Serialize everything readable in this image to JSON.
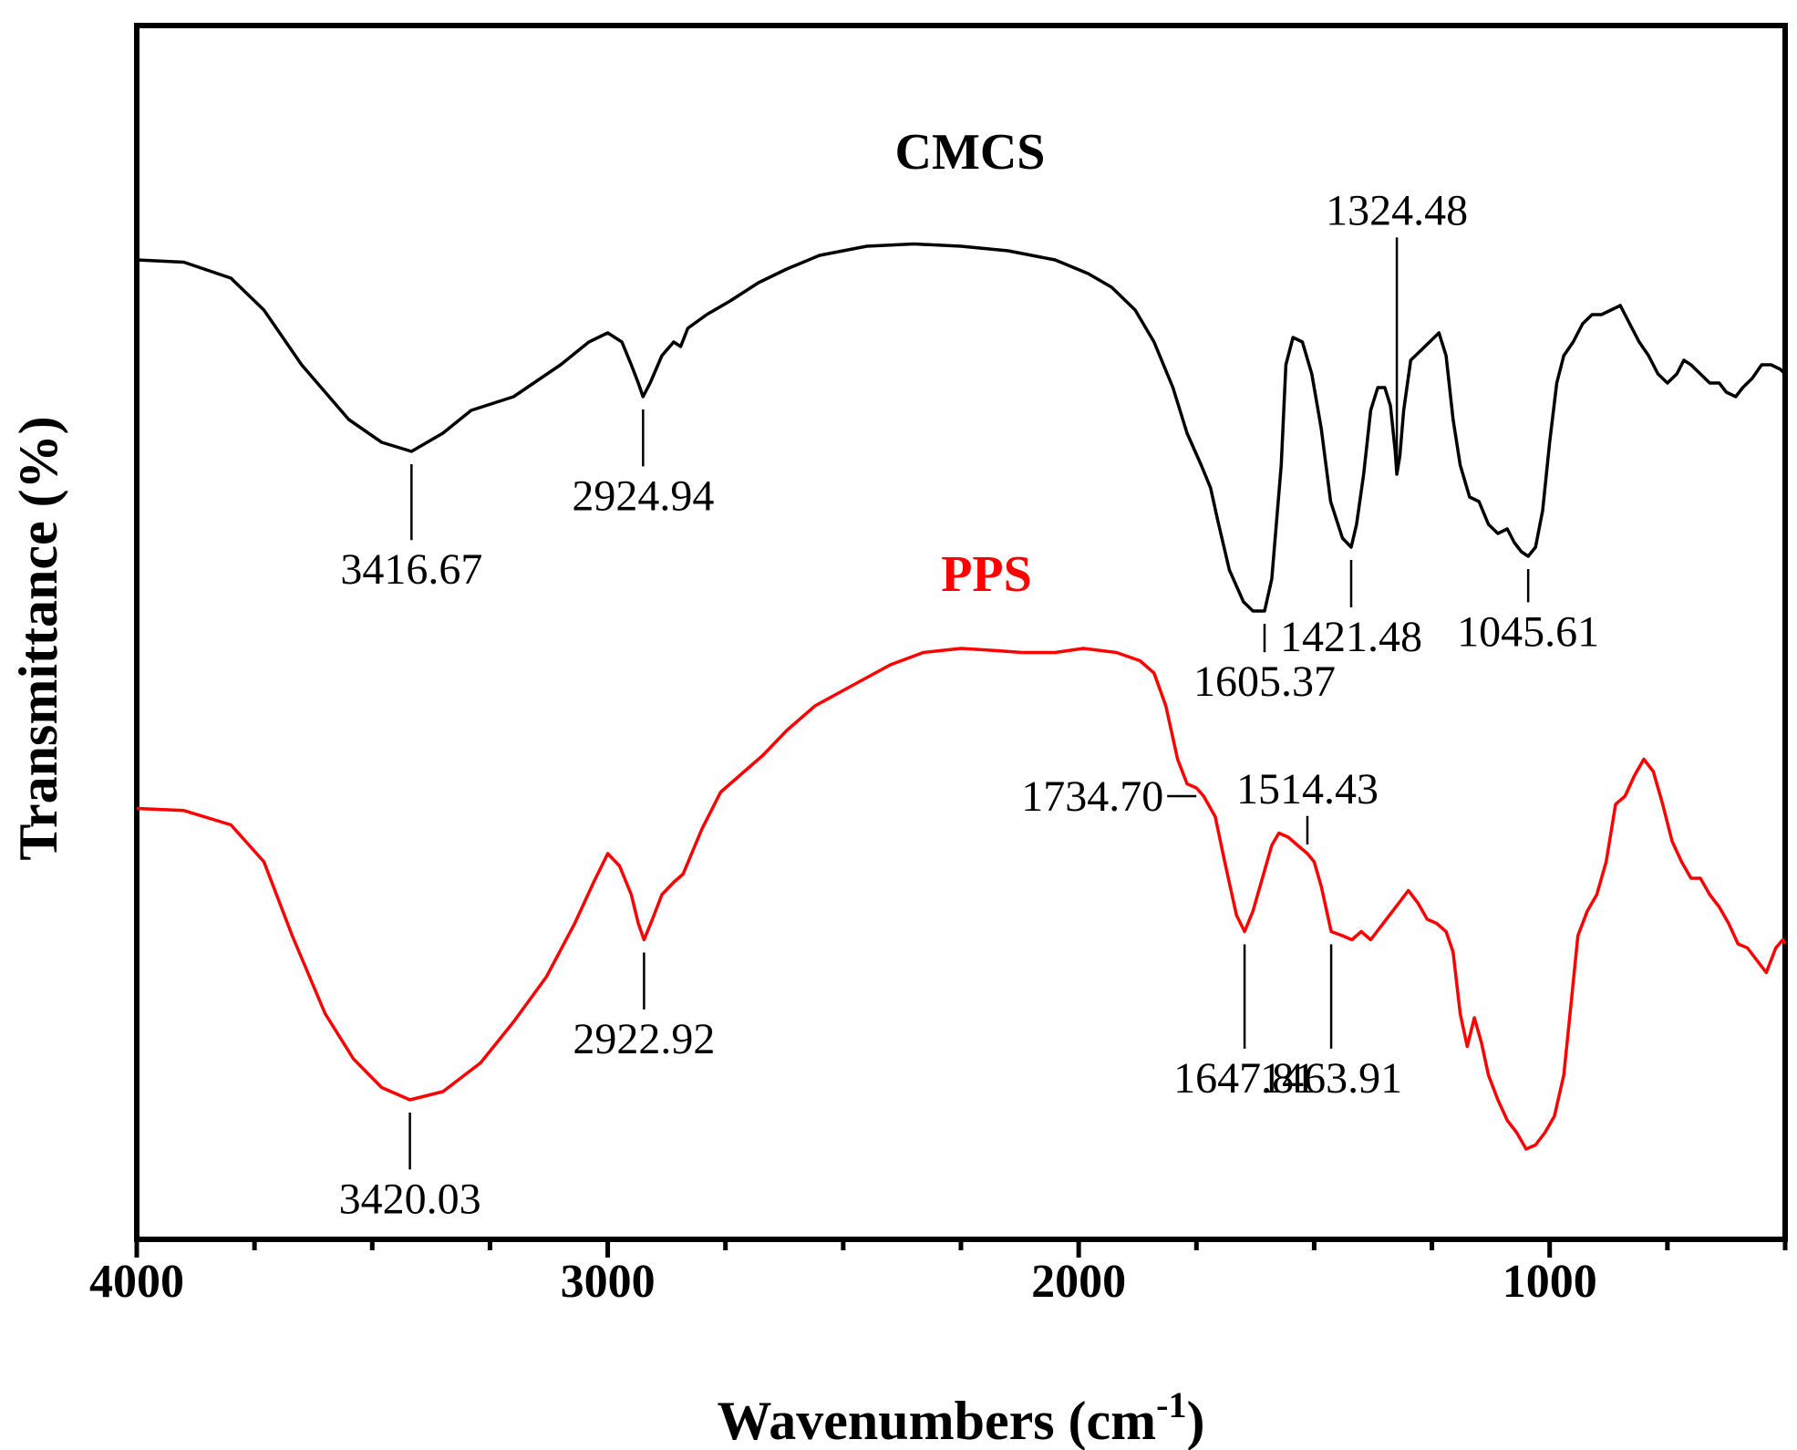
{
  "chart_data": {
    "type": "line",
    "title": "",
    "xlabel": "Wavenumbers (cm",
    "xlabel_sup": "-1",
    "xlabel_close": ")",
    "ylabel": "Transmittance (%)",
    "xlim": [
      4000,
      500
    ],
    "x_ticks": [
      4000,
      3000,
      2000,
      1000
    ],
    "x_tick_labels": [
      "4000",
      "3000",
      "2000",
      "1000"
    ],
    "y_ticks_shown": false,
    "colors": {
      "CMCS": "#000000",
      "PPS": "#ff0000"
    },
    "series": [
      {
        "name": "CMCS",
        "color": "#000000",
        "points": [
          [
            4000,
            85
          ],
          [
            3900,
            84.5
          ],
          [
            3800,
            81
          ],
          [
            3730,
            74
          ],
          [
            3650,
            62
          ],
          [
            3550,
            50
          ],
          [
            3480,
            45
          ],
          [
            3416.67,
            43
          ],
          [
            3350,
            47
          ],
          [
            3290,
            52
          ],
          [
            3200,
            55
          ],
          [
            3100,
            62
          ],
          [
            3040,
            67
          ],
          [
            3000,
            69
          ],
          [
            2970,
            67
          ],
          [
            2950,
            62
          ],
          [
            2935,
            58
          ],
          [
            2924.94,
            55
          ],
          [
            2910,
            58
          ],
          [
            2885,
            64
          ],
          [
            2860,
            67
          ],
          [
            2845,
            66
          ],
          [
            2830,
            70
          ],
          [
            2790,
            73
          ],
          [
            2740,
            76
          ],
          [
            2680,
            80
          ],
          [
            2620,
            83
          ],
          [
            2550,
            86
          ],
          [
            2450,
            88
          ],
          [
            2350,
            88.5
          ],
          [
            2250,
            88
          ],
          [
            2150,
            87
          ],
          [
            2050,
            85
          ],
          [
            1980,
            82
          ],
          [
            1930,
            79
          ],
          [
            1880,
            74
          ],
          [
            1840,
            67
          ],
          [
            1800,
            57
          ],
          [
            1770,
            47
          ],
          [
            1740,
            40
          ],
          [
            1720,
            35
          ],
          [
            1705,
            28
          ],
          [
            1680,
            17
          ],
          [
            1650,
            10
          ],
          [
            1630,
            8
          ],
          [
            1605.37,
            8
          ],
          [
            1590,
            15
          ],
          [
            1570,
            40
          ],
          [
            1560,
            62
          ],
          [
            1545,
            68
          ],
          [
            1525,
            67
          ],
          [
            1505,
            60
          ],
          [
            1485,
            48
          ],
          [
            1465,
            32
          ],
          [
            1440,
            24
          ],
          [
            1421.48,
            22
          ],
          [
            1410,
            27
          ],
          [
            1395,
            38
          ],
          [
            1380,
            52
          ],
          [
            1365,
            57
          ],
          [
            1350,
            57
          ],
          [
            1338,
            53
          ],
          [
            1328,
            43
          ],
          [
            1324.48,
            38
          ],
          [
            1318,
            42
          ],
          [
            1310,
            52
          ],
          [
            1295,
            63
          ],
          [
            1275,
            65
          ],
          [
            1255,
            67
          ],
          [
            1235,
            69
          ],
          [
            1220,
            64
          ],
          [
            1205,
            50
          ],
          [
            1190,
            40
          ],
          [
            1170,
            33
          ],
          [
            1150,
            32
          ],
          [
            1130,
            27
          ],
          [
            1110,
            25
          ],
          [
            1090,
            26
          ],
          [
            1075,
            23
          ],
          [
            1060,
            21
          ],
          [
            1045.61,
            20
          ],
          [
            1030,
            22
          ],
          [
            1015,
            30
          ],
          [
            1000,
            45
          ],
          [
            985,
            58
          ],
          [
            970,
            64
          ],
          [
            950,
            67
          ],
          [
            930,
            71
          ],
          [
            910,
            73
          ],
          [
            890,
            73
          ],
          [
            870,
            74
          ],
          [
            850,
            75
          ],
          [
            830,
            71
          ],
          [
            810,
            67
          ],
          [
            790,
            64
          ],
          [
            770,
            60
          ],
          [
            750,
            58
          ],
          [
            730,
            60
          ],
          [
            715,
            63
          ],
          [
            700,
            62
          ],
          [
            680,
            60
          ],
          [
            660,
            58
          ],
          [
            640,
            58
          ],
          [
            625,
            56
          ],
          [
            605,
            55
          ],
          [
            590,
            57
          ],
          [
            570,
            59
          ],
          [
            550,
            62
          ],
          [
            530,
            62
          ],
          [
            510,
            61
          ],
          [
            500,
            60
          ]
        ]
      },
      {
        "name": "PPS",
        "color": "#ff0000",
        "points": [
          [
            4000,
            83
          ],
          [
            3900,
            82.5
          ],
          [
            3800,
            79
          ],
          [
            3730,
            70
          ],
          [
            3670,
            52
          ],
          [
            3600,
            33
          ],
          [
            3540,
            22
          ],
          [
            3480,
            15
          ],
          [
            3420.03,
            12
          ],
          [
            3350,
            14
          ],
          [
            3270,
            21
          ],
          [
            3200,
            31
          ],
          [
            3130,
            42
          ],
          [
            3070,
            55
          ],
          [
            3030,
            65
          ],
          [
            3000,
            72
          ],
          [
            2975,
            69
          ],
          [
            2950,
            62
          ],
          [
            2935,
            55
          ],
          [
            2922.92,
            51
          ],
          [
            2905,
            56
          ],
          [
            2885,
            62
          ],
          [
            2860,
            65
          ],
          [
            2840,
            67
          ],
          [
            2800,
            78
          ],
          [
            2760,
            87
          ],
          [
            2720,
            91
          ],
          [
            2670,
            96
          ],
          [
            2620,
            102
          ],
          [
            2560,
            108
          ],
          [
            2480,
            113
          ],
          [
            2400,
            118
          ],
          [
            2330,
            121
          ],
          [
            2250,
            122
          ],
          [
            2180,
            121.5
          ],
          [
            2120,
            121
          ],
          [
            2050,
            121
          ],
          [
            1990,
            122
          ],
          [
            1920,
            121
          ],
          [
            1870,
            119
          ],
          [
            1840,
            116
          ],
          [
            1815,
            108
          ],
          [
            1790,
            95
          ],
          [
            1770,
            89
          ],
          [
            1750,
            88
          ],
          [
            1734.7,
            86
          ],
          [
            1710,
            81
          ],
          [
            1690,
            70
          ],
          [
            1665,
            57
          ],
          [
            1647.81,
            53
          ],
          [
            1630,
            58
          ],
          [
            1610,
            66
          ],
          [
            1590,
            74
          ],
          [
            1575,
            77
          ],
          [
            1555,
            76
          ],
          [
            1535,
            74
          ],
          [
            1514.43,
            72
          ],
          [
            1500,
            70
          ],
          [
            1485,
            64
          ],
          [
            1463.91,
            53
          ],
          [
            1440,
            52
          ],
          [
            1420,
            51
          ],
          [
            1400,
            53
          ],
          [
            1380,
            51
          ],
          [
            1360,
            54
          ],
          [
            1340,
            57
          ],
          [
            1320,
            60
          ],
          [
            1300,
            63
          ],
          [
            1280,
            60
          ],
          [
            1260,
            56
          ],
          [
            1240,
            55
          ],
          [
            1220,
            53
          ],
          [
            1205,
            48
          ],
          [
            1190,
            33
          ],
          [
            1175,
            25
          ],
          [
            1160,
            32
          ],
          [
            1145,
            26
          ],
          [
            1130,
            18
          ],
          [
            1110,
            12
          ],
          [
            1090,
            7
          ],
          [
            1070,
            4
          ],
          [
            1050,
            0
          ],
          [
            1030,
            1
          ],
          [
            1010,
            4
          ],
          [
            990,
            8
          ],
          [
            970,
            18
          ],
          [
            955,
            35
          ],
          [
            940,
            52
          ],
          [
            920,
            58
          ],
          [
            900,
            62
          ],
          [
            880,
            70
          ],
          [
            860,
            84
          ],
          [
            840,
            86
          ],
          [
            820,
            91
          ],
          [
            800,
            95
          ],
          [
            780,
            92
          ],
          [
            760,
            84
          ],
          [
            740,
            75
          ],
          [
            720,
            70
          ],
          [
            700,
            66
          ],
          [
            680,
            66
          ],
          [
            660,
            62
          ],
          [
            640,
            59
          ],
          [
            620,
            55
          ],
          [
            600,
            50
          ],
          [
            580,
            49
          ],
          [
            560,
            46
          ],
          [
            540,
            43
          ],
          [
            520,
            49
          ],
          [
            505,
            51
          ],
          [
            500,
            50
          ]
        ]
      }
    ],
    "annotations": [
      {
        "series": "CMCS",
        "text": "3416.67",
        "x": 3416.67,
        "y": 43,
        "dir": "down",
        "len": 16
      },
      {
        "series": "CMCS",
        "text": "2924.94",
        "x": 2924.94,
        "y": 55,
        "dir": "down",
        "len": 12
      },
      {
        "series": "CMCS",
        "text": "1605.37",
        "x": 1605.37,
        "y": 8,
        "dir": "down",
        "len": 6
      },
      {
        "series": "CMCS",
        "text": "1421.48",
        "x": 1421.48,
        "y": 22,
        "dir": "down",
        "len": 10
      },
      {
        "series": "CMCS",
        "text": "1324.48",
        "x": 1324.48,
        "y": 38,
        "dir": "up",
        "len": 48
      },
      {
        "series": "CMCS",
        "text": "1045.61",
        "x": 1045.61,
        "y": 20,
        "dir": "down",
        "len": 7
      },
      {
        "series": "PPS",
        "text": "3420.03",
        "x": 3420.03,
        "y": 12,
        "dir": "down",
        "len": 12
      },
      {
        "series": "PPS",
        "text": "2922.92",
        "x": 2922.92,
        "y": 51,
        "dir": "down",
        "len": 12
      },
      {
        "series": "PPS",
        "text": "1734.70",
        "x": 1734.7,
        "y": 86,
        "dir": "left",
        "len": 0
      },
      {
        "series": "PPS",
        "text": "1514.43",
        "x": 1514.43,
        "y": 72,
        "dir": "up",
        "len": 6
      },
      {
        "series": "PPS",
        "text": "1647.81",
        "x": 1647.81,
        "y": 53,
        "dir": "down",
        "len": 22
      },
      {
        "series": "PPS",
        "text": "1463.91",
        "x": 1463.91,
        "y": 53,
        "dir": "down",
        "len": 22
      }
    ]
  }
}
